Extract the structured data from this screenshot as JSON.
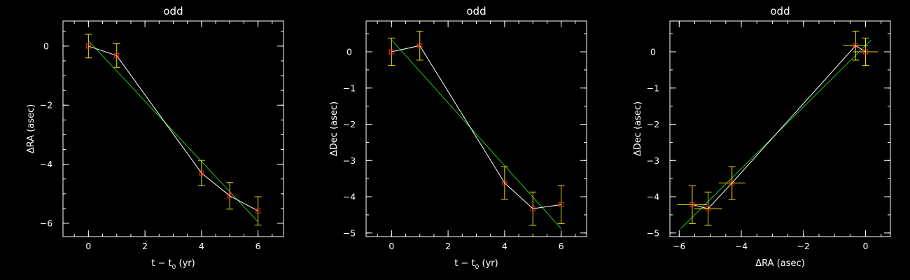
{
  "chart_data": [
    {
      "type": "line",
      "title": "odd",
      "xlabel": "t − t",
      "xlabel_sub": "0",
      "xlabel_unit": " (yr)",
      "ylabel": "ΔRA (asec)",
      "xlim": [
        -0.9,
        6.9
      ],
      "ylim": [
        -6.45,
        0.85
      ],
      "xticks": [
        0,
        2,
        4,
        6
      ],
      "yticks": [
        -6,
        -4,
        -2,
        0
      ],
      "xminor": 0.5,
      "yminor": 0.5,
      "series": [
        {
          "role": "data",
          "color": "#ffffff",
          "marker_color": "#ff2020",
          "errorbar_color": "#e8e000",
          "x": [
            0,
            1,
            4,
            5,
            6
          ],
          "y": [
            0.0,
            -0.32,
            -4.3,
            -5.07,
            -5.58
          ],
          "yerr": [
            0.4,
            0.4,
            0.43,
            0.45,
            0.48
          ],
          "xerr": [
            0,
            0,
            0,
            0,
            0
          ]
        },
        {
          "role": "fit",
          "color": "#20c020",
          "x": [
            0,
            6
          ],
          "y": [
            0.18,
            -5.95
          ]
        }
      ]
    },
    {
      "type": "line",
      "title": "odd",
      "xlabel": "t − t",
      "xlabel_sub": "0",
      "xlabel_unit": " (yr)",
      "ylabel": "ΔDec (asec)",
      "xlim": [
        -0.9,
        6.9
      ],
      "ylim": [
        -5.1,
        0.85
      ],
      "xticks": [
        0,
        2,
        4,
        6
      ],
      "yticks": [
        -5,
        -4,
        -3,
        -2,
        -1,
        0
      ],
      "xminor": 0.5,
      "yminor": 0.5,
      "series": [
        {
          "role": "data",
          "color": "#ffffff",
          "marker_color": "#ff2020",
          "errorbar_color": "#e8e000",
          "x": [
            0,
            1,
            4,
            5,
            6
          ],
          "y": [
            0.0,
            0.17,
            -3.62,
            -4.33,
            -4.22
          ],
          "yerr": [
            0.38,
            0.4,
            0.45,
            0.46,
            0.52
          ],
          "xerr": [
            0,
            0,
            0,
            0,
            0
          ]
        },
        {
          "role": "fit",
          "color": "#20c020",
          "x": [
            0,
            6
          ],
          "y": [
            0.33,
            -4.88
          ]
        }
      ]
    },
    {
      "type": "scatter",
      "title": "odd",
      "xlabel": "ΔRA (asec)",
      "xlabel_sub": "",
      "xlabel_unit": "",
      "ylabel": "ΔDec (asec)",
      "xlim": [
        -6.3,
        0.8
      ],
      "ylim": [
        -5.1,
        0.85
      ],
      "xticks": [
        -6,
        -4,
        -2,
        0
      ],
      "yticks": [
        -5,
        -4,
        -3,
        -2,
        -1,
        0
      ],
      "xminor": 0.5,
      "yminor": 0.5,
      "series": [
        {
          "role": "data",
          "color": "#ffffff",
          "marker_color": "#ff2020",
          "errorbar_color": "#e8e000",
          "x": [
            0.0,
            -0.32,
            -4.3,
            -5.07,
            -5.58
          ],
          "y": [
            0.0,
            0.17,
            -3.62,
            -4.33,
            -4.22
          ],
          "yerr": [
            0.38,
            0.4,
            0.45,
            0.46,
            0.52
          ],
          "xerr": [
            0.4,
            0.4,
            0.43,
            0.45,
            0.48
          ]
        },
        {
          "role": "fit",
          "color": "#20c020",
          "x": [
            -5.95,
            0.18
          ],
          "y": [
            -4.88,
            0.33
          ]
        }
      ]
    }
  ]
}
